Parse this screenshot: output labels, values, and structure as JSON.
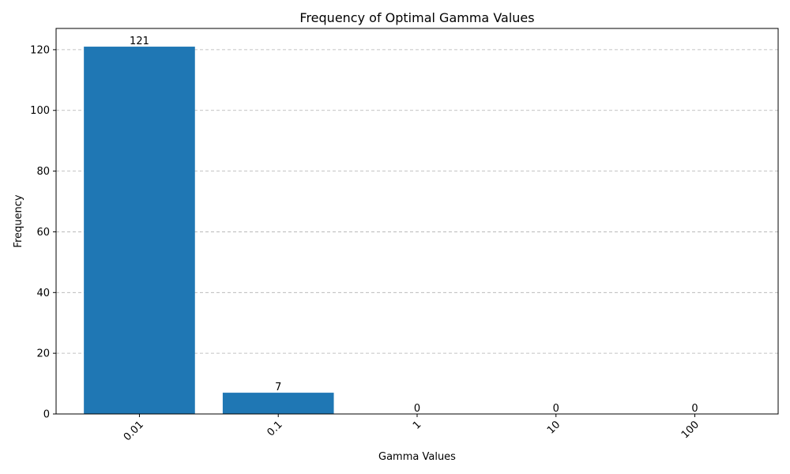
{
  "chart_data": {
    "type": "bar",
    "title": "Frequency of Optimal Gamma Values",
    "xlabel": "Gamma Values",
    "ylabel": "Frequency",
    "categories": [
      "0.01",
      "0.1",
      "1",
      "10",
      "100"
    ],
    "values": [
      121,
      7,
      0,
      0,
      0
    ],
    "data_labels": [
      "121",
      "7",
      "0",
      "0",
      "0"
    ],
    "yticks": [
      0,
      20,
      40,
      60,
      80,
      100,
      120
    ],
    "ylim": [
      0,
      127
    ],
    "grid": "y, dashed",
    "x_tick_rotation": 45,
    "bar_color": "#1f77b4"
  }
}
